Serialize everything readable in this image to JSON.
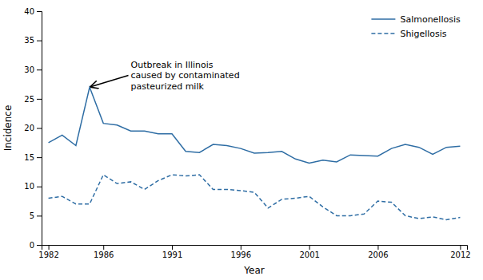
{
  "chart_data": {
    "type": "line",
    "xlabel": "Year",
    "ylabel": "Incidence",
    "x": [
      1982,
      1983,
      1984,
      1985,
      1986,
      1987,
      1988,
      1989,
      1990,
      1991,
      1992,
      1993,
      1994,
      1995,
      1996,
      1997,
      1998,
      1999,
      2000,
      2001,
      2002,
      2003,
      2004,
      2005,
      2006,
      2007,
      2008,
      2009,
      2010,
      2011,
      2012
    ],
    "series": [
      {
        "name": "Salmonellosis",
        "color": "#2e6da4",
        "line_style": "solid",
        "values": [
          17.5,
          18.8,
          17.0,
          27.0,
          20.8,
          20.5,
          19.5,
          19.5,
          19.0,
          19.0,
          16.0,
          15.8,
          17.2,
          17.0,
          16.5,
          15.7,
          15.8,
          16.0,
          14.7,
          14.0,
          14.5,
          14.2,
          15.4,
          15.3,
          15.2,
          16.5,
          17.2,
          16.7,
          15.5,
          16.7,
          16.9
        ]
      },
      {
        "name": "Shigellosis",
        "color": "#2e6da4",
        "line_style": "dashed",
        "values": [
          8.0,
          8.3,
          7.0,
          7.0,
          12.0,
          10.5,
          10.8,
          9.5,
          11.0,
          12.0,
          11.8,
          12.0,
          9.5,
          9.5,
          9.3,
          9.0,
          6.3,
          7.8,
          8.0,
          8.3,
          6.5,
          5.0,
          5.0,
          5.3,
          7.5,
          7.3,
          5.0,
          4.5,
          4.8,
          4.3,
          4.7
        ]
      }
    ],
    "xlim": [
      1981.5,
      2012.5
    ],
    "xticks": [
      1982,
      1986,
      1991,
      1996,
      2001,
      2006,
      2012
    ],
    "ylim": [
      0,
      40
    ],
    "yticks": [
      0,
      5,
      10,
      15,
      20,
      25,
      30,
      35,
      40
    ],
    "annotations": [
      {
        "text": "Outbreak in Illinois\ncaused by contaminated\npasteurized milk",
        "x": 1985.0,
        "y": 27.0,
        "text_x": 1988.0,
        "text_y": 29.0
      }
    ],
    "legend": "upper right",
    "grid": false
  }
}
